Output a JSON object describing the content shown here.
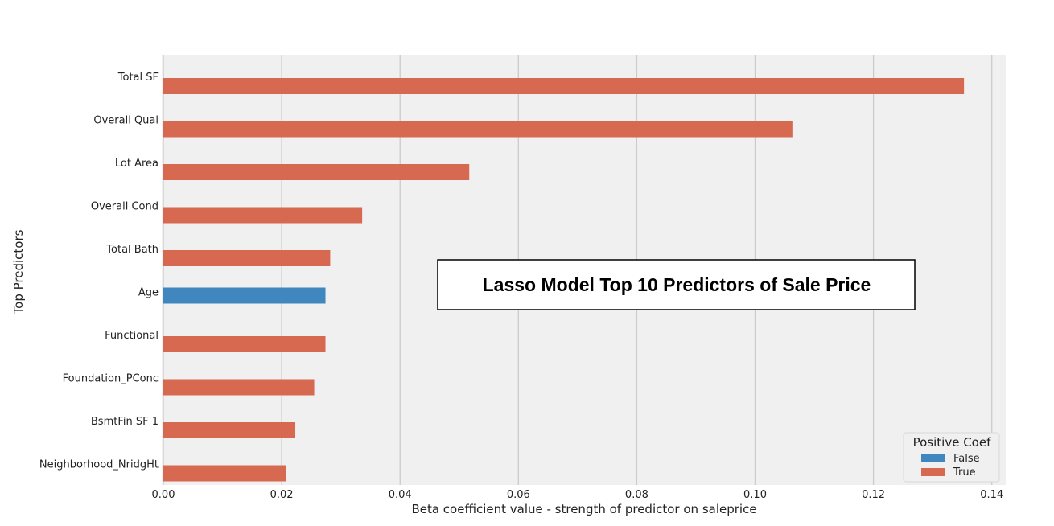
{
  "chart_data": {
    "type": "bar",
    "orientation": "horizontal",
    "annotation": "Lasso Model Top 10 Predictors of Sale Price",
    "xlabel": "Beta coefficient value - strength of predictor on saleprice",
    "ylabel": "Top Predictors",
    "xlim": [
      0,
      0.142
    ],
    "x_ticks": [
      "0.00",
      "0.02",
      "0.04",
      "0.06",
      "0.08",
      "0.10",
      "0.12",
      "0.14"
    ],
    "x_tick_values": [
      0,
      0.02,
      0.04,
      0.06,
      0.08,
      0.1,
      0.12,
      0.14
    ],
    "grid": true,
    "categories": [
      "Total SF",
      "Overall Qual",
      "Lot Area",
      "Overall Cond",
      "Total Bath",
      "Age",
      "Functional",
      "Foundation_PConc",
      "BsmtFin SF 1",
      "Neighborhood_NridgHt"
    ],
    "values": [
      0.1353,
      0.1063,
      0.0517,
      0.0336,
      0.0282,
      0.0274,
      0.0274,
      0.0255,
      0.0223,
      0.0208
    ],
    "positive": [
      "True",
      "True",
      "True",
      "True",
      "True",
      "False",
      "True",
      "True",
      "True",
      "True"
    ],
    "legend": {
      "title": "Positive Coef",
      "placement": "lower-right",
      "entries": [
        {
          "label": "False",
          "color": "#3f87be"
        },
        {
          "label": "True",
          "color": "#d86951"
        }
      ]
    },
    "colors": {
      "False": "#3f87be",
      "True": "#d86951",
      "plot_bg": "#f0f0f0",
      "grid": "#cbcbcb"
    }
  }
}
